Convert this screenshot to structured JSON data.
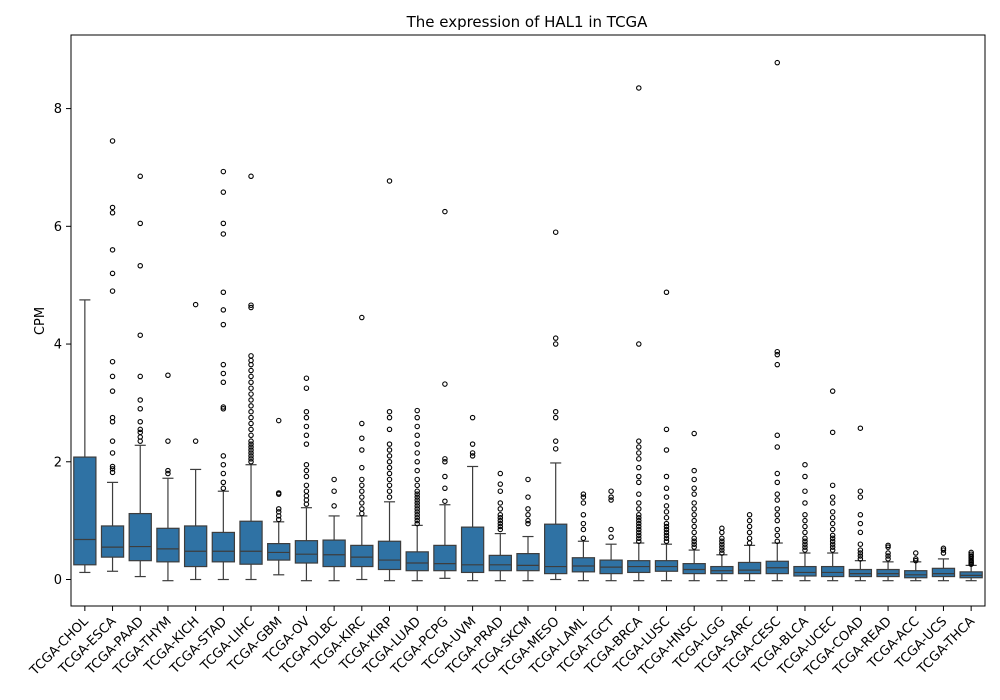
{
  "chart_data": {
    "type": "box",
    "title": "The expression of HAL1 in TCGA",
    "xlabel": "",
    "ylabel": "CPM",
    "ylim": [
      -0.45,
      9.25
    ],
    "yticks": [
      0,
      2,
      4,
      6,
      8
    ],
    "box_color": "#2f72a4",
    "grid": false,
    "legend": "none",
    "categories": [
      "TCGA-CHOL",
      "TCGA-ESCA",
      "TCGA-PAAD",
      "TCGA-THYM",
      "TCGA-KICH",
      "TCGA-STAD",
      "TCGA-LIHC",
      "TCGA-GBM",
      "TCGA-OV",
      "TCGA-DLBC",
      "TCGA-KIRC",
      "TCGA-KIRP",
      "TCGA-LUAD",
      "TCGA-PCPG",
      "TCGA-UVM",
      "TCGA-PRAD",
      "TCGA-SKCM",
      "TCGA-MESO",
      "TCGA-LAML",
      "TCGA-TGCT",
      "TCGA-BRCA",
      "TCGA-LUSC",
      "TCGA-HNSC",
      "TCGA-LGG",
      "TCGA-SARC",
      "TCGA-CESC",
      "TCGA-BLCA",
      "TCGA-UCEC",
      "TCGA-COAD",
      "TCGA-READ",
      "TCGA-ACC",
      "TCGA-UCS",
      "TCGA-THCA"
    ],
    "boxes": [
      {
        "min": 0.12,
        "q1": 0.25,
        "median": 0.68,
        "q3": 2.08,
        "max": 4.75,
        "outliers": []
      },
      {
        "min": 0.14,
        "q1": 0.38,
        "median": 0.55,
        "q3": 0.91,
        "max": 1.65,
        "outliers": [
          1.82,
          1.88,
          1.92,
          2.15,
          2.35,
          2.68,
          2.75,
          3.2,
          3.45,
          3.7,
          4.9,
          5.2,
          5.6,
          6.23,
          6.32,
          7.45
        ]
      },
      {
        "min": 0.05,
        "q1": 0.32,
        "median": 0.56,
        "q3": 1.12,
        "max": 2.28,
        "outliers": [
          2.35,
          2.42,
          2.5,
          2.55,
          2.68,
          2.9,
          3.05,
          3.45,
          4.15,
          5.33,
          6.05,
          6.85
        ]
      },
      {
        "min": -0.02,
        "q1": 0.3,
        "median": 0.52,
        "q3": 0.87,
        "max": 1.72,
        "outliers": [
          1.8,
          1.85,
          2.35,
          3.47
        ]
      },
      {
        "min": 0.0,
        "q1": 0.22,
        "median": 0.48,
        "q3": 0.91,
        "max": 1.87,
        "outliers": [
          2.35,
          4.67
        ]
      },
      {
        "min": 0.0,
        "q1": 0.3,
        "median": 0.48,
        "q3": 0.8,
        "max": 1.5,
        "outliers": [
          1.55,
          1.65,
          1.8,
          1.95,
          2.1,
          2.9,
          2.93,
          3.35,
          3.5,
          3.65,
          4.33,
          4.58,
          4.88,
          5.87,
          6.05,
          6.58,
          6.93
        ]
      },
      {
        "min": 0.0,
        "q1": 0.26,
        "median": 0.48,
        "q3": 0.99,
        "max": 1.95,
        "outliers": [
          2.0,
          2.05,
          2.1,
          2.15,
          2.2,
          2.25,
          2.3,
          2.35,
          2.45,
          2.55,
          2.65,
          2.75,
          2.85,
          2.95,
          3.05,
          3.15,
          3.25,
          3.35,
          3.45,
          3.55,
          3.65,
          3.72,
          3.8,
          4.62,
          4.66,
          6.85
        ]
      },
      {
        "min": 0.08,
        "q1": 0.33,
        "median": 0.46,
        "q3": 0.61,
        "max": 0.98,
        "outliers": [
          1.02,
          1.08,
          1.15,
          1.2,
          1.45,
          1.47,
          2.7
        ]
      },
      {
        "min": -0.02,
        "q1": 0.28,
        "median": 0.43,
        "q3": 0.66,
        "max": 1.22,
        "outliers": [
          1.28,
          1.35,
          1.42,
          1.5,
          1.6,
          1.75,
          1.85,
          1.95,
          2.3,
          2.45,
          2.6,
          2.75,
          2.85,
          3.25,
          3.42
        ]
      },
      {
        "min": -0.02,
        "q1": 0.22,
        "median": 0.42,
        "q3": 0.67,
        "max": 1.08,
        "outliers": [
          1.25,
          1.5,
          1.7
        ]
      },
      {
        "min": 0.0,
        "q1": 0.22,
        "median": 0.38,
        "q3": 0.58,
        "max": 1.08,
        "outliers": [
          1.12,
          1.2,
          1.3,
          1.4,
          1.5,
          1.6,
          1.7,
          1.9,
          2.2,
          2.4,
          2.65,
          4.45
        ]
      },
      {
        "min": -0.02,
        "q1": 0.17,
        "median": 0.33,
        "q3": 0.65,
        "max": 1.32,
        "outliers": [
          1.4,
          1.5,
          1.6,
          1.7,
          1.8,
          1.9,
          2.0,
          2.1,
          2.2,
          2.3,
          2.55,
          2.75,
          2.85,
          6.77
        ]
      },
      {
        "min": -0.02,
        "q1": 0.15,
        "median": 0.28,
        "q3": 0.47,
        "max": 0.92,
        "outliers": [
          0.95,
          1.0,
          1.05,
          1.1,
          1.15,
          1.2,
          1.25,
          1.3,
          1.35,
          1.4,
          1.45,
          1.5,
          1.6,
          1.7,
          1.85,
          2.0,
          2.15,
          2.3,
          2.45,
          2.6,
          2.75,
          2.87
        ]
      },
      {
        "min": 0.02,
        "q1": 0.15,
        "median": 0.27,
        "q3": 0.58,
        "max": 1.27,
        "outliers": [
          1.33,
          1.55,
          1.75,
          2.0,
          2.05,
          3.32,
          6.25
        ]
      },
      {
        "min": -0.02,
        "q1": 0.12,
        "median": 0.25,
        "q3": 0.89,
        "max": 1.92,
        "outliers": [
          2.1,
          2.15,
          2.3,
          2.75
        ]
      },
      {
        "min": -0.02,
        "q1": 0.15,
        "median": 0.25,
        "q3": 0.41,
        "max": 0.78,
        "outliers": [
          0.85,
          0.9,
          0.95,
          1.0,
          1.05,
          1.1,
          1.2,
          1.3,
          1.5,
          1.62,
          1.8
        ]
      },
      {
        "min": -0.02,
        "q1": 0.15,
        "median": 0.24,
        "q3": 0.44,
        "max": 0.73,
        "outliers": [
          0.95,
          1.0,
          1.1,
          1.2,
          1.4,
          1.7
        ]
      },
      {
        "min": 0.0,
        "q1": 0.1,
        "median": 0.22,
        "q3": 0.94,
        "max": 1.98,
        "outliers": [
          2.22,
          2.35,
          2.75,
          2.85,
          4.0,
          4.1,
          5.9
        ]
      },
      {
        "min": -0.02,
        "q1": 0.13,
        "median": 0.23,
        "q3": 0.37,
        "max": 0.65,
        "outliers": [
          0.7,
          0.85,
          0.95,
          1.1,
          1.3,
          1.4,
          1.45
        ]
      },
      {
        "min": -0.02,
        "q1": 0.1,
        "median": 0.21,
        "q3": 0.33,
        "max": 0.6,
        "outliers": [
          0.72,
          0.85,
          1.35,
          1.4,
          1.5
        ]
      },
      {
        "min": -0.02,
        "q1": 0.12,
        "median": 0.22,
        "q3": 0.32,
        "max": 0.62,
        "outliers": [
          0.65,
          0.7,
          0.75,
          0.8,
          0.85,
          0.9,
          0.95,
          1.0,
          1.05,
          1.1,
          1.2,
          1.3,
          1.45,
          1.65,
          1.75,
          1.9,
          2.05,
          2.15,
          2.25,
          2.35,
          4.0,
          8.35
        ]
      },
      {
        "min": -0.02,
        "q1": 0.14,
        "median": 0.22,
        "q3": 0.32,
        "max": 0.6,
        "outliers": [
          0.65,
          0.7,
          0.75,
          0.8,
          0.85,
          0.9,
          0.95,
          1.05,
          1.15,
          1.25,
          1.4,
          1.55,
          1.75,
          2.2,
          2.55,
          4.88
        ]
      },
      {
        "min": -0.02,
        "q1": 0.1,
        "median": 0.17,
        "q3": 0.27,
        "max": 0.5,
        "outliers": [
          0.55,
          0.6,
          0.65,
          0.7,
          0.8,
          0.9,
          1.0,
          1.1,
          1.2,
          1.3,
          1.45,
          1.55,
          1.7,
          1.85,
          2.48
        ]
      },
      {
        "min": -0.02,
        "q1": 0.1,
        "median": 0.15,
        "q3": 0.22,
        "max": 0.42,
        "outliers": [
          0.45,
          0.5,
          0.55,
          0.6,
          0.65,
          0.7,
          0.8,
          0.87
        ]
      },
      {
        "min": -0.02,
        "q1": 0.1,
        "median": 0.16,
        "q3": 0.29,
        "max": 0.58,
        "outliers": [
          0.62,
          0.7,
          0.8,
          0.9,
          1.0,
          1.1
        ]
      },
      {
        "min": -0.02,
        "q1": 0.1,
        "median": 0.2,
        "q3": 0.31,
        "max": 0.62,
        "outliers": [
          0.65,
          0.75,
          0.85,
          1.0,
          1.1,
          1.2,
          1.35,
          1.45,
          1.65,
          1.8,
          2.25,
          2.45,
          3.65,
          3.82,
          3.87,
          8.78
        ]
      },
      {
        "min": -0.02,
        "q1": 0.06,
        "median": 0.12,
        "q3": 0.22,
        "max": 0.45,
        "outliers": [
          0.5,
          0.55,
          0.6,
          0.65,
          0.7,
          0.8,
          0.9,
          1.0,
          1.1,
          1.3,
          1.5,
          1.75,
          1.95
        ]
      },
      {
        "min": -0.02,
        "q1": 0.05,
        "median": 0.12,
        "q3": 0.22,
        "max": 0.45,
        "outliers": [
          0.5,
          0.55,
          0.6,
          0.65,
          0.7,
          0.75,
          0.85,
          0.95,
          1.05,
          1.15,
          1.3,
          1.4,
          1.6,
          2.5,
          3.2
        ]
      },
      {
        "min": -0.02,
        "q1": 0.05,
        "median": 0.1,
        "q3": 0.17,
        "max": 0.32,
        "outliers": [
          0.35,
          0.4,
          0.45,
          0.5,
          0.6,
          0.8,
          0.95,
          1.1,
          1.4,
          1.5,
          2.57
        ]
      },
      {
        "min": -0.02,
        "q1": 0.05,
        "median": 0.1,
        "q3": 0.17,
        "max": 0.3,
        "outliers": [
          0.35,
          0.4,
          0.45,
          0.55,
          0.58
        ]
      },
      {
        "min": -0.02,
        "q1": 0.03,
        "median": 0.08,
        "q3": 0.15,
        "max": 0.3,
        "outliers": [
          0.32,
          0.35,
          0.45
        ]
      },
      {
        "min": -0.02,
        "q1": 0.05,
        "median": 0.1,
        "q3": 0.19,
        "max": 0.35,
        "outliers": [
          0.45,
          0.5,
          0.53
        ]
      },
      {
        "min": -0.02,
        "q1": 0.03,
        "median": 0.07,
        "q3": 0.13,
        "max": 0.24,
        "outliers": [
          0.26,
          0.28,
          0.3,
          0.32,
          0.35,
          0.38,
          0.4,
          0.43,
          0.46
        ]
      }
    ]
  }
}
